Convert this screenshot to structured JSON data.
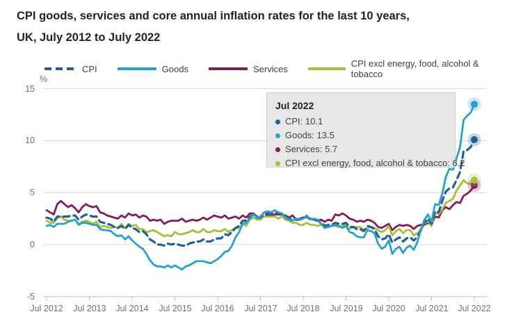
{
  "title": {
    "line1": "CPI goods, services and core annual inflation rates for the last 10 years,",
    "line2": "UK, July 2012 to July 2022"
  },
  "tooltip": {
    "header": "Jul 2022",
    "items": [
      {
        "text": "CPI: 10.1",
        "color": "#206095"
      },
      {
        "text": "Goods: 13.5",
        "color": "#27A0CC"
      },
      {
        "text": "Services: 5.7",
        "color": "#871A5B"
      },
      {
        "text": "CPI excl energy, food, alcohol & tobacco: 6.2",
        "color": "#A8BD3A"
      }
    ]
  },
  "chart_data": {
    "type": "line",
    "title": "CPI goods, services and core annual inflation rates for the last 10 years, UK, July 2012 to July 2022",
    "y_unit": "%",
    "ylim": [
      -5,
      15
    ],
    "y_ticks": [
      15,
      10,
      5,
      0,
      -5
    ],
    "grid": "horizontal",
    "legend_position": "top",
    "x_tick_labels": [
      "Jul 2012",
      "Jul 2013",
      "Jul 2014",
      "Jul 2015",
      "Jul 2016",
      "Jul 2017",
      "Jul 2018",
      "Jul 2019",
      "Jul 2020",
      "Jul 2021",
      "Jul 2022"
    ],
    "x_frequency": "monthly",
    "series": [
      {
        "name": "CPI",
        "color": "#206095",
        "dash": true,
        "values": [
          2.6,
          2.5,
          2.2,
          2.7,
          2.7,
          2.7,
          2.7,
          2.8,
          2.8,
          2.4,
          2.7,
          2.9,
          2.8,
          2.7,
          2.7,
          2.2,
          2.1,
          2.0,
          1.9,
          1.7,
          1.6,
          1.8,
          1.5,
          1.9,
          1.6,
          1.5,
          1.2,
          1.3,
          1.0,
          0.5,
          0.3,
          0.0,
          0.0,
          -0.1,
          0.1,
          0.0,
          0.1,
          0.0,
          -0.1,
          -0.1,
          0.1,
          0.2,
          0.3,
          0.3,
          0.5,
          0.3,
          0.3,
          0.5,
          0.6,
          0.6,
          1.0,
          0.9,
          1.2,
          1.6,
          1.8,
          2.3,
          2.3,
          2.7,
          2.9,
          2.6,
          2.6,
          2.9,
          3.0,
          3.0,
          3.1,
          3.0,
          3.0,
          2.7,
          2.5,
          2.4,
          2.4,
          2.4,
          2.5,
          2.7,
          2.4,
          2.4,
          2.3,
          2.1,
          1.8,
          1.9,
          1.9,
          2.1,
          2.0,
          2.0,
          2.1,
          1.7,
          1.7,
          1.5,
          1.5,
          1.3,
          1.8,
          1.7,
          1.5,
          0.8,
          0.5,
          0.6,
          1.0,
          0.2,
          0.5,
          0.7,
          0.3,
          0.6,
          0.7,
          0.4,
          0.7,
          1.5,
          2.1,
          2.5,
          2.0,
          3.2,
          3.1,
          4.2,
          5.1,
          5.4,
          5.5,
          6.2,
          7.0,
          9.0,
          9.1,
          9.4,
          10.1
        ]
      },
      {
        "name": "Goods",
        "color": "#27A0CC",
        "dash": false,
        "values": [
          1.8,
          1.9,
          1.7,
          2.0,
          2.0,
          2.0,
          2.2,
          2.3,
          2.4,
          1.9,
          2.1,
          2.1,
          2.0,
          1.9,
          1.9,
          1.5,
          1.4,
          1.4,
          1.3,
          1.0,
          0.8,
          0.9,
          0.5,
          0.8,
          0.4,
          0.1,
          -0.2,
          -0.4,
          -0.9,
          -1.5,
          -1.9,
          -2.1,
          -2.1,
          -2.2,
          -2.0,
          -2.2,
          -2.0,
          -2.2,
          -2.4,
          -2.1,
          -2.0,
          -1.8,
          -1.6,
          -1.6,
          -1.6,
          -1.7,
          -1.8,
          -1.6,
          -1.4,
          -1.1,
          -0.7,
          -0.6,
          -0.1,
          0.7,
          1.2,
          2.0,
          2.1,
          2.5,
          2.9,
          2.6,
          2.7,
          3.1,
          3.2,
          3.1,
          3.3,
          3.1,
          3.0,
          2.6,
          2.4,
          2.3,
          2.5,
          2.4,
          2.5,
          2.8,
          2.4,
          2.5,
          2.4,
          2.0,
          1.6,
          1.7,
          1.8,
          1.9,
          1.8,
          1.6,
          1.8,
          1.2,
          1.1,
          0.8,
          0.7,
          0.7,
          1.4,
          1.3,
          1.1,
          0.1,
          -0.4,
          -0.2,
          0.4,
          -0.9,
          -0.4,
          -0.2,
          -0.8,
          -0.3,
          -0.1,
          -0.5,
          0.2,
          1.4,
          2.4,
          2.9,
          2.2,
          3.9,
          3.8,
          4.9,
          6.5,
          7.3,
          7.2,
          8.3,
          9.4,
          12.0,
          12.4,
          12.7,
          13.5
        ]
      },
      {
        "name": "Services",
        "color": "#871A5B",
        "dash": false,
        "values": [
          3.3,
          3.1,
          2.9,
          3.9,
          4.2,
          3.9,
          3.6,
          3.8,
          3.5,
          3.1,
          3.6,
          3.9,
          3.7,
          3.6,
          3.7,
          3.1,
          3.0,
          2.8,
          2.7,
          2.6,
          2.5,
          2.8,
          2.6,
          3.0,
          2.8,
          2.9,
          2.6,
          2.8,
          2.7,
          2.3,
          2.4,
          2.3,
          2.4,
          2.0,
          2.2,
          2.3,
          2.3,
          2.3,
          2.5,
          2.2,
          2.3,
          2.4,
          2.3,
          2.4,
          2.6,
          2.4,
          2.6,
          2.8,
          2.7,
          2.6,
          2.8,
          2.5,
          2.6,
          2.7,
          2.5,
          2.8,
          2.6,
          3.0,
          3.0,
          2.7,
          2.6,
          2.7,
          2.8,
          2.8,
          2.9,
          2.9,
          2.9,
          2.8,
          2.6,
          2.8,
          2.4,
          2.5,
          2.6,
          2.7,
          2.5,
          2.4,
          2.3,
          2.4,
          2.2,
          2.4,
          2.3,
          2.9,
          2.8,
          3.0,
          2.8,
          2.5,
          2.4,
          2.2,
          2.3,
          2.2,
          2.4,
          2.3,
          2.1,
          1.7,
          1.6,
          1.8,
          2.0,
          1.4,
          1.7,
          1.9,
          1.8,
          1.9,
          1.8,
          1.5,
          1.8,
          1.9,
          1.9,
          2.1,
          1.9,
          2.7,
          2.6,
          3.3,
          3.6,
          3.4,
          3.8,
          4.1,
          4.0,
          4.7,
          4.9,
          5.2,
          5.7
        ]
      },
      {
        "name": "CPI excl energy, food, alcohol & tobacco",
        "color": "#A8BD3A",
        "dash": false,
        "values": [
          2.3,
          2.1,
          2.1,
          2.6,
          2.7,
          2.4,
          2.3,
          2.3,
          2.4,
          2.0,
          2.2,
          2.3,
          2.2,
          2.0,
          2.2,
          1.7,
          1.8,
          1.7,
          1.6,
          1.7,
          1.6,
          2.0,
          1.6,
          2.0,
          1.8,
          1.9,
          1.5,
          1.5,
          1.2,
          1.3,
          1.4,
          1.2,
          1.0,
          0.8,
          0.9,
          0.8,
          1.2,
          1.0,
          1.0,
          1.1,
          1.2,
          1.4,
          1.2,
          1.2,
          1.5,
          1.2,
          1.2,
          1.4,
          1.3,
          1.3,
          1.5,
          1.2,
          1.4,
          1.6,
          1.6,
          2.0,
          1.8,
          2.4,
          2.6,
          2.4,
          2.4,
          2.7,
          2.7,
          2.7,
          2.7,
          2.5,
          2.7,
          2.4,
          2.3,
          2.1,
          2.1,
          1.9,
          1.9,
          2.1,
          1.9,
          1.9,
          1.8,
          1.9,
          1.9,
          1.8,
          1.8,
          1.8,
          1.7,
          1.8,
          1.9,
          1.5,
          1.7,
          1.7,
          1.7,
          1.4,
          1.6,
          1.7,
          1.6,
          1.4,
          1.2,
          1.4,
          1.8,
          0.9,
          1.3,
          1.5,
          1.1,
          1.4,
          1.4,
          0.9,
          1.1,
          1.3,
          2.0,
          2.3,
          1.8,
          3.1,
          2.9,
          3.4,
          4.0,
          4.2,
          4.4,
          5.2,
          5.7,
          6.2,
          5.9,
          5.8,
          6.2
        ]
      }
    ],
    "end_labels": {
      "CPI": 10.1,
      "Goods": 13.5,
      "Services": 5.7,
      "CPI excl energy, food, alcohol & tobacco": 6.2
    }
  }
}
